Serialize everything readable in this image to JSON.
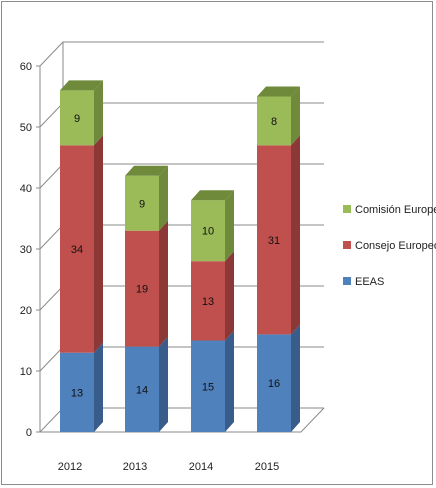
{
  "chart_data": {
    "type": "bar",
    "stacked": true,
    "three_d": true,
    "categories": [
      "2012",
      "2013",
      "2014",
      "2015"
    ],
    "series": [
      {
        "name": "EEAS",
        "values": [
          13,
          14,
          15,
          16
        ],
        "color": "#4f81bd",
        "side": "#385d8a",
        "top": "#6f97cb"
      },
      {
        "name": "Consejo Europeo",
        "values": [
          34,
          19,
          13,
          31
        ],
        "color": "#c0504d",
        "side": "#8c3836",
        "top": "#d06e6b"
      },
      {
        "name": "Comisión Europea",
        "values": [
          9,
          9,
          10,
          8
        ],
        "color": "#9bbb59",
        "side": "#6f8a3b",
        "top": "#b3ce7c"
      }
    ],
    "ylim": [
      0,
      60
    ],
    "yticks": [
      0,
      10,
      20,
      30,
      40,
      50,
      60
    ],
    "grid": true,
    "legend_position": "right",
    "title": "",
    "xlabel": "",
    "ylabel": ""
  }
}
